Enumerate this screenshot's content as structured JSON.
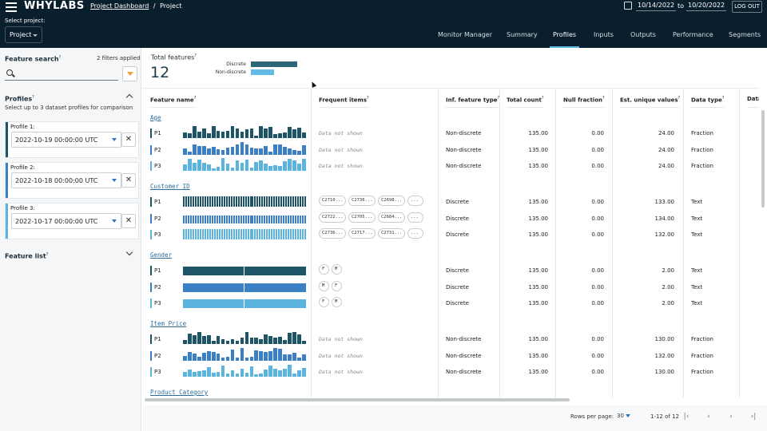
{
  "header": {
    "brand": "WHYLABS",
    "breadcrumb_link": "Project Dashboard",
    "breadcrumb_sep": "/",
    "breadcrumb_current": "Project",
    "select_label": "Select project:",
    "project": "Project",
    "date_from": "10/14/2022",
    "date_to_label": "to",
    "date_to": "10/20/2022",
    "logout": "LOG OUT"
  },
  "tabs": [
    "Monitor Manager",
    "Summary",
    "Profiles",
    "Inputs",
    "Outputs",
    "Performance",
    "Segments"
  ],
  "active_tab": "Profiles",
  "sidebar": {
    "search_title": "Feature search",
    "filters": "2 filters applied",
    "profiles_title": "Profiles",
    "profiles_note": "Select up to 3 dataset profiles for comparison",
    "profiles": [
      {
        "label": "Profile 1:",
        "value": "2022-10-19 00:00:00 UTC",
        "color": "#1e5566"
      },
      {
        "label": "Profile 2:",
        "value": "2022-10-18 00:00:00 UTC",
        "color": "#3b7fc4"
      },
      {
        "label": "Profile 3:",
        "value": "2022-10-17 00:00:00 UTC",
        "color": "#5ab4df"
      }
    ],
    "feature_list": "Feature list",
    "help": "?"
  },
  "summary": {
    "title": "Total features",
    "count": "12",
    "legend": [
      {
        "label": "Discrete",
        "color": "#2d6679",
        "fraction": 1.0
      },
      {
        "label": "Non-discrete",
        "color": "#62bce7",
        "fraction": 0.5
      }
    ]
  },
  "columns": [
    "Feature name",
    "Frequent items",
    "Inf. feature type",
    "Total count",
    "Null fraction",
    "Est. unique values",
    "Data type",
    "Data"
  ],
  "features": [
    {
      "name": "Age",
      "kind": "num",
      "rows": [
        {
          "p": "P1",
          "freq": "Data not shown",
          "type": "Non-discrete",
          "total": "135.00",
          "null": "0.00",
          "unique": "24.00",
          "dtype": "Fraction"
        },
        {
          "p": "P2",
          "freq": "Data not shown",
          "type": "Non-discrete",
          "total": "135.00",
          "null": "0.00",
          "unique": "24.00",
          "dtype": "Fraction"
        },
        {
          "p": "P3",
          "freq": "Data not shown",
          "type": "Non-discrete",
          "total": "135.00",
          "null": "0.00",
          "unique": "24.00",
          "dtype": "Fraction"
        }
      ]
    },
    {
      "name": "Customer ID",
      "kind": "dense",
      "rows": [
        {
          "p": "P1",
          "chips": [
            "C2710...",
            "C2736...",
            "C2698...",
            "..."
          ],
          "type": "Discrete",
          "total": "135.00",
          "null": "0.00",
          "unique": "133.00",
          "dtype": "Text"
        },
        {
          "p": "P2",
          "chips": [
            "C2722...",
            "C2705...",
            "C2684...",
            "..."
          ],
          "type": "Discrete",
          "total": "135.00",
          "null": "0.00",
          "unique": "134.00",
          "dtype": "Text"
        },
        {
          "p": "P3",
          "chips": [
            "C2736...",
            "C2717...",
            "C2731...",
            "..."
          ],
          "type": "Discrete",
          "total": "135.00",
          "null": "0.00",
          "unique": "132.00",
          "dtype": "Text"
        }
      ]
    },
    {
      "name": "Gender",
      "kind": "two",
      "rows": [
        {
          "p": "P1",
          "chips": [
            "F",
            "M"
          ],
          "type": "Discrete",
          "total": "135.00",
          "null": "0.00",
          "unique": "2.00",
          "dtype": "Text"
        },
        {
          "p": "P2",
          "chips": [
            "M",
            "F"
          ],
          "type": "Discrete",
          "total": "135.00",
          "null": "0.00",
          "unique": "2.00",
          "dtype": "Text"
        },
        {
          "p": "P3",
          "chips": [
            "F",
            "M"
          ],
          "type": "Discrete",
          "total": "135.00",
          "null": "0.00",
          "unique": "2.00",
          "dtype": "Text"
        }
      ]
    },
    {
      "name": "Item Price",
      "kind": "num",
      "rows": [
        {
          "p": "P1",
          "freq": "Data not shown",
          "type": "Non-discrete",
          "total": "135.00",
          "null": "0.00",
          "unique": "130.00",
          "dtype": "Fraction"
        },
        {
          "p": "P2",
          "freq": "Data not shown",
          "type": "Non-discrete",
          "total": "135.00",
          "null": "0.00",
          "unique": "132.00",
          "dtype": "Fraction"
        },
        {
          "p": "P3",
          "freq": "Data not shown",
          "type": "Non-discrete",
          "total": "135.00",
          "null": "0.00",
          "unique": "130.00",
          "dtype": "Fraction"
        }
      ]
    },
    {
      "name": "Product Category",
      "kind": "none",
      "rows": []
    }
  ],
  "profile_colors": [
    "#1e5566",
    "#3b7fc4",
    "#5ab4df"
  ],
  "footer": {
    "rows_label": "Rows per page:",
    "rows_value": "30",
    "range": "1-12 of 12"
  }
}
